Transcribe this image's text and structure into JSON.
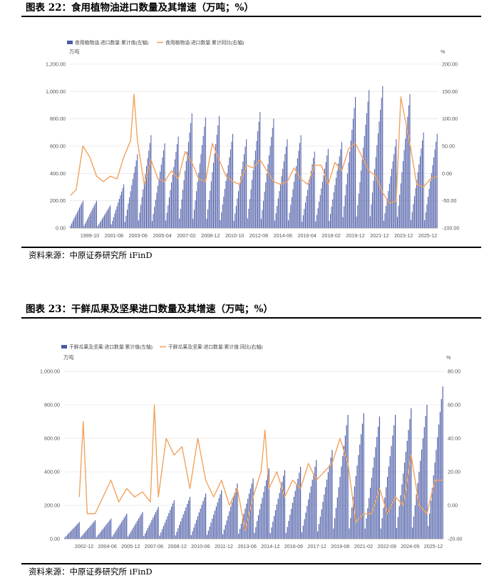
{
  "figures": [
    {
      "title": "图表 22：食用植物油进口数量及其增速（万吨；%）",
      "source": "资料来源：中原证券研究所 iFinD",
      "chart_data": {
        "type": "bar+line",
        "legend": [
          "食用植物油:进口数量:累计值(左轴)",
          "食用植物油:进口数量:累计同比(右轴)"
        ],
        "left_unit": "万吨",
        "right_unit": "%",
        "ylim_left": [
          0,
          1200
        ],
        "ylim_right": [
          -100,
          200
        ],
        "yticks_left": [
          "0.00",
          "200.00",
          "400.00",
          "600.00",
          "800.00",
          "1,000.00",
          "1,200.00"
        ],
        "yticks_right": [
          "-100.00",
          "-50.00",
          "0.00",
          "50.00",
          "100.00",
          "150.00",
          "200.00"
        ],
        "xticks": [
          "1999-10",
          "2001-08",
          "2003-06",
          "2005-04",
          "2007-02",
          "2008-12",
          "2010-10",
          "2012-08",
          "2014-06",
          "2016-04",
          "2018-02",
          "2019-12",
          "2021-12",
          "2023-12",
          "2025-12"
        ],
        "years": [
          1999,
          2000,
          2001,
          2002,
          2003,
          2004,
          2005,
          2006,
          2007,
          2008,
          2009,
          2010,
          2011,
          2012,
          2013,
          2014,
          2015,
          2016,
          2017,
          2018,
          2019,
          2020,
          2021,
          2022,
          2023,
          2024,
          2025
        ],
        "annual_totals": [
          200,
          200,
          165,
          320,
          540,
          680,
          620,
          670,
          840,
          810,
          820,
          690,
          650,
          850,
          800,
          650,
          680,
          560,
          580,
          630,
          960,
          1010,
          1040,
          650,
          980,
          700,
          690
        ],
        "yoy_keypoints": [
          [
            "1999-01",
            -40
          ],
          [
            "1999-06",
            -30
          ],
          [
            "1999-12",
            50
          ],
          [
            "2000-06",
            30
          ],
          [
            "2000-12",
            -5
          ],
          [
            "2001-06",
            -15
          ],
          [
            "2001-12",
            -5
          ],
          [
            "2002-06",
            -10
          ],
          [
            "2002-12",
            30
          ],
          [
            "2003-06",
            60
          ],
          [
            "2003-09",
            145
          ],
          [
            "2003-12",
            60
          ],
          [
            "2004-06",
            -20
          ],
          [
            "2004-12",
            25
          ],
          [
            "2005-06",
            -10
          ],
          [
            "2005-12",
            -15
          ],
          [
            "2006-06",
            5
          ],
          [
            "2006-12",
            -10
          ],
          [
            "2007-06",
            40
          ],
          [
            "2007-12",
            20
          ],
          [
            "2008-06",
            -10
          ],
          [
            "2008-12",
            -15
          ],
          [
            "2009-06",
            55
          ],
          [
            "2009-12",
            25
          ],
          [
            "2010-06",
            -5
          ],
          [
            "2010-12",
            -15
          ],
          [
            "2011-06",
            -20
          ],
          [
            "2011-12",
            15
          ],
          [
            "2012-06",
            10
          ],
          [
            "2012-12",
            25
          ],
          [
            "2013-06",
            5
          ],
          [
            "2013-12",
            -15
          ],
          [
            "2014-06",
            -20
          ],
          [
            "2014-12",
            -15
          ],
          [
            "2015-06",
            10
          ],
          [
            "2015-12",
            -10
          ],
          [
            "2016-06",
            -20
          ],
          [
            "2016-12",
            15
          ],
          [
            "2017-06",
            15
          ],
          [
            "2017-12",
            -20
          ],
          [
            "2018-06",
            20
          ],
          [
            "2018-12",
            5
          ],
          [
            "2019-06",
            45
          ],
          [
            "2019-12",
            55
          ],
          [
            "2020-06",
            30
          ],
          [
            "2020-12",
            5
          ],
          [
            "2021-06",
            -5
          ],
          [
            "2021-12",
            -35
          ],
          [
            "2022-06",
            -55
          ],
          [
            "2022-12",
            -50
          ],
          [
            "2023-04",
            140
          ],
          [
            "2023-12",
            55
          ],
          [
            "2024-06",
            -20
          ],
          [
            "2024-12",
            -25
          ],
          [
            "2025-06",
            -10
          ],
          [
            "2025-12",
            -5
          ]
        ],
        "colors": {
          "bar": "#4a5aa6",
          "line": "#f2a35e"
        }
      }
    },
    {
      "title": "图表 23：干鲜瓜果及坚果进口数量及其增速（万吨；%）",
      "source": "资料来源：中原证券研究所 iFinD",
      "chart_data": {
        "type": "bar+line",
        "legend": [
          "干鲜瓜果及坚果:进口数量:累计值(左轴)",
          "干鲜瓜果及坚果:进口数量:累计值:同比(右轴)"
        ],
        "left_unit": "万吨",
        "right_unit": "%",
        "ylim_left": [
          0,
          1000
        ],
        "ylim_right": [
          -20,
          80
        ],
        "yticks_left": [
          "0.00",
          "200.00",
          "400.00",
          "600.00",
          "800.00",
          "1,000.00"
        ],
        "yticks_right": [
          "-20.00",
          "0.00",
          "20.00",
          "40.00",
          "60.00",
          "80.00"
        ],
        "xticks": [
          "2002-12",
          "2004-06",
          "2005-12",
          "2007-06",
          "2008-12",
          "2010-06",
          "2011-12",
          "2013-06",
          "2014-12",
          "2016-06",
          "2017-12",
          "2019-06",
          "2021-02",
          "2022-09",
          "2024-05",
          "2025-12"
        ],
        "years": [
          2002,
          2003,
          2004,
          2005,
          2006,
          2007,
          2008,
          2009,
          2010,
          2011,
          2012,
          2013,
          2014,
          2015,
          2016,
          2017,
          2018,
          2019,
          2020,
          2021,
          2022,
          2023,
          2024,
          2025
        ],
        "annual_totals": [
          100,
          110,
          120,
          150,
          160,
          190,
          230,
          250,
          270,
          290,
          330,
          360,
          420,
          410,
          430,
          470,
          530,
          740,
          750,
          730,
          740,
          780,
          800,
          910
        ],
        "yoy_keypoints": [
          [
            "2002-12",
            5
          ],
          [
            "2003-03",
            50
          ],
          [
            "2003-06",
            -5
          ],
          [
            "2003-12",
            -5
          ],
          [
            "2004-06",
            5
          ],
          [
            "2004-12",
            15
          ],
          [
            "2005-06",
            2
          ],
          [
            "2005-12",
            10
          ],
          [
            "2006-06",
            5
          ],
          [
            "2006-12",
            8
          ],
          [
            "2007-06",
            2
          ],
          [
            "2007-09",
            60
          ],
          [
            "2007-12",
            5
          ],
          [
            "2008-06",
            40
          ],
          [
            "2008-12",
            30
          ],
          [
            "2009-06",
            35
          ],
          [
            "2009-12",
            10
          ],
          [
            "2010-06",
            40
          ],
          [
            "2010-12",
            15
          ],
          [
            "2011-06",
            5
          ],
          [
            "2011-12",
            15
          ],
          [
            "2012-06",
            0
          ],
          [
            "2012-12",
            10
          ],
          [
            "2013-06",
            -15
          ],
          [
            "2013-12",
            5
          ],
          [
            "2014-06",
            20
          ],
          [
            "2014-09",
            45
          ],
          [
            "2014-12",
            10
          ],
          [
            "2015-06",
            20
          ],
          [
            "2015-12",
            5
          ],
          [
            "2016-06",
            15
          ],
          [
            "2016-12",
            10
          ],
          [
            "2017-06",
            25
          ],
          [
            "2017-12",
            15
          ],
          [
            "2018-06",
            20
          ],
          [
            "2018-12",
            25
          ],
          [
            "2019-06",
            40
          ],
          [
            "2019-12",
            25
          ],
          [
            "2020-06",
            -10
          ],
          [
            "2020-12",
            -5
          ],
          [
            "2021-06",
            -5
          ],
          [
            "2021-12",
            10
          ],
          [
            "2022-06",
            -5
          ],
          [
            "2022-12",
            5
          ],
          [
            "2023-06",
            0
          ],
          [
            "2023-12",
            30
          ],
          [
            "2024-06",
            0
          ],
          [
            "2024-12",
            -5
          ],
          [
            "2025-06",
            15
          ],
          [
            "2025-12",
            15
          ]
        ],
        "colors": {
          "bar": "#4a5aa6",
          "line": "#f2a35e"
        }
      }
    }
  ]
}
